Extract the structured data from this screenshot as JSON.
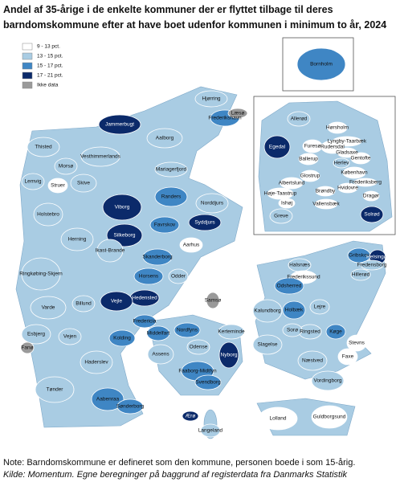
{
  "title": "Andel af 35-årige i de enkelte kommuner der er flyttet tilbage til deres barndomskommune efter at have boet udenfor kommunen i minimum to år, 2024 (%)",
  "legend": [
    {
      "label": "9 - 13 pct.",
      "color": "#ffffff"
    },
    {
      "label": "13 - 15 pct.",
      "color": "#a9cce3"
    },
    {
      "label": "15 - 17 pct.",
      "color": "#3f86c4"
    },
    {
      "label": "17 - 21 pct.",
      "color": "#0b2a6a"
    },
    {
      "label": "Ikke data",
      "color": "#9a9a9a"
    }
  ],
  "municipalities": [
    {
      "name": "Hjørring",
      "class": 1
    },
    {
      "name": "Frederikshavn",
      "class": 2
    },
    {
      "name": "Jammerbugt",
      "class": 3
    },
    {
      "name": "Thisted",
      "class": 1
    },
    {
      "name": "Aalborg",
      "class": 1
    },
    {
      "name": "Vesthimmerlands",
      "class": 1
    },
    {
      "name": "Mariagerfjord",
      "class": 1
    },
    {
      "name": "Morsø",
      "class": 1
    },
    {
      "name": "Skive",
      "class": 1
    },
    {
      "name": "Viborg",
      "class": 3
    },
    {
      "name": "Randers",
      "class": 2
    },
    {
      "name": "Norddjurs",
      "class": 1
    },
    {
      "name": "Lemvig",
      "class": 1
    },
    {
      "name": "Struer",
      "class": 0
    },
    {
      "name": "Holstebro",
      "class": 1
    },
    {
      "name": "Syddjurs",
      "class": 3
    },
    {
      "name": "Silkeborg",
      "class": 3
    },
    {
      "name": "Favrskov",
      "class": 2
    },
    {
      "name": "Herning",
      "class": 1
    },
    {
      "name": "Ikast-Brande",
      "class": 1
    },
    {
      "name": "Aarhus",
      "class": 0
    },
    {
      "name": "Skanderborg",
      "class": 2
    },
    {
      "name": "Ringkøbing-Skjern",
      "class": 1
    },
    {
      "name": "Horsens",
      "class": 2
    },
    {
      "name": "Odder",
      "class": 1
    },
    {
      "name": "Samsø",
      "class": 4
    },
    {
      "name": "Hedensted",
      "class": 3
    },
    {
      "name": "Vejle",
      "class": 3
    },
    {
      "name": "Billund",
      "class": 1
    },
    {
      "name": "Varde",
      "class": 1
    },
    {
      "name": "Fredericia",
      "class": 2
    },
    {
      "name": "Middelfart",
      "class": 2
    },
    {
      "name": "Nordfyns",
      "class": 2
    },
    {
      "name": "Kerteminde",
      "class": 1
    },
    {
      "name": "Kolding",
      "class": 2
    },
    {
      "name": "Esbjerg",
      "class": 1
    },
    {
      "name": "Vejen",
      "class": 1
    },
    {
      "name": "Fanø",
      "class": 4
    },
    {
      "name": "Odense",
      "class": 1
    },
    {
      "name": "Assens",
      "class": 1
    },
    {
      "name": "Nyborg",
      "class": 3
    },
    {
      "name": "Haderslev",
      "class": 1
    },
    {
      "name": "Faaborg-Midtfyn",
      "class": 2
    },
    {
      "name": "Svendborg",
      "class": 2
    },
    {
      "name": "Tønder",
      "class": 1
    },
    {
      "name": "Aabenraa",
      "class": 2
    },
    {
      "name": "Sønderborg",
      "class": 2
    },
    {
      "name": "Ærø",
      "class": 3
    },
    {
      "name": "Langeland",
      "class": 1
    },
    {
      "name": "Læsø",
      "class": 4
    },
    {
      "name": "Bornholm",
      "class": 2
    },
    {
      "name": "Halsnæs",
      "class": 1
    },
    {
      "name": "Gribskov",
      "class": 2
    },
    {
      "name": "Helsingør",
      "class": 3
    },
    {
      "name": "Fredensborg",
      "class": 1
    },
    {
      "name": "Hillerød",
      "class": 1
    },
    {
      "name": "Frederikssund",
      "class": 0
    },
    {
      "name": "Odsherred",
      "class": 2
    },
    {
      "name": "Kalundborg",
      "class": 1
    },
    {
      "name": "Holbæk",
      "class": 2
    },
    {
      "name": "Lejre",
      "class": 1
    },
    {
      "name": "Køge",
      "class": 2
    },
    {
      "name": "Ringsted",
      "class": 1
    },
    {
      "name": "Sorø",
      "class": 1
    },
    {
      "name": "Slagelse",
      "class": 1
    },
    {
      "name": "Stevns",
      "class": 0
    },
    {
      "name": "Næstved",
      "class": 1
    },
    {
      "name": "Faxe",
      "class": 0
    },
    {
      "name": "Vordingborg",
      "class": 1
    },
    {
      "name": "Guldborgsund",
      "class": 0
    },
    {
      "name": "Lolland",
      "class": 0
    },
    {
      "name": "Hørsholm",
      "class": 0
    },
    {
      "name": "Allerød",
      "class": 1
    },
    {
      "name": "Rudersdal",
      "class": 0
    },
    {
      "name": "Egedal",
      "class": 3
    },
    {
      "name": "Furesø",
      "class": 0
    },
    {
      "name": "Lyngby-Taarbæk",
      "class": 0
    },
    {
      "name": "Gladsaxe",
      "class": 0
    },
    {
      "name": "Gentofte",
      "class": 0
    },
    {
      "name": "Ballerup",
      "class": 0
    },
    {
      "name": "Herlev",
      "class": 1
    },
    {
      "name": "København",
      "class": 0
    },
    {
      "name": "Frederiksberg",
      "class": 0
    },
    {
      "name": "Glostrup",
      "class": 0
    },
    {
      "name": "Albertslund",
      "class": 0
    },
    {
      "name": "Brøndby",
      "class": 0
    },
    {
      "name": "Hvidovre",
      "class": 0
    },
    {
      "name": "Høje-Taastrup",
      "class": 0
    },
    {
      "name": "Ishøj",
      "class": 0
    },
    {
      "name": "Vallensbæk",
      "class": 0
    },
    {
      "name": "Greve",
      "class": 1
    },
    {
      "name": "Dragør",
      "class": 0
    },
    {
      "name": "Solrød",
      "class": 3
    }
  ],
  "notes": [
    "Note: Barndomskommune er defineret som den kommune, personen boede i som 15-årig.",
    "Kilde: Momentum. Egne beregninger på baggrund af registerdata fra Danmarks Statistik"
  ]
}
